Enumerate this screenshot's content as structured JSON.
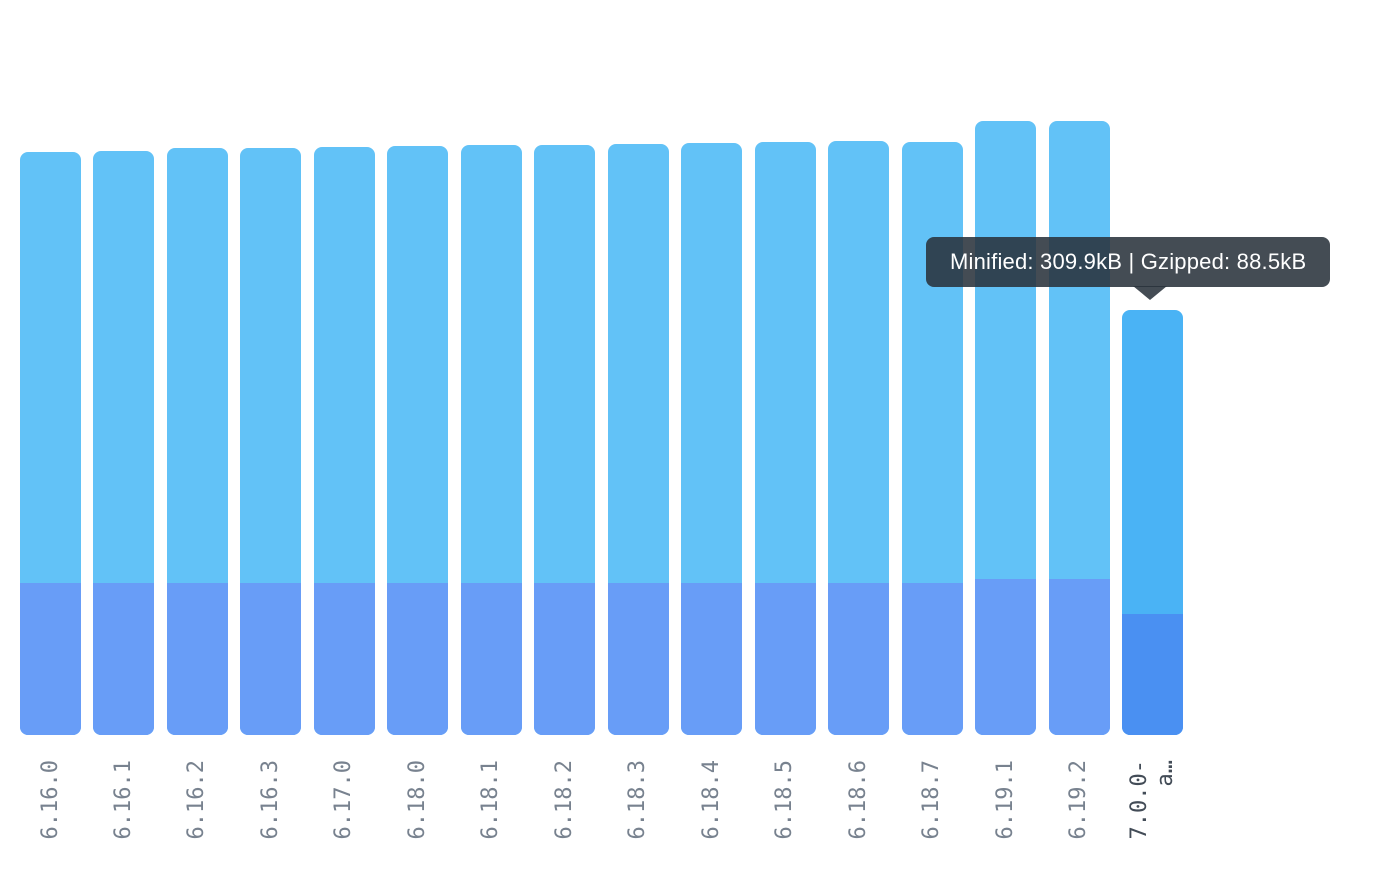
{
  "page": {
    "background": "#FFFFFF"
  },
  "colors": {
    "minified_bar": "#62C2F7",
    "gzipped_bar": "#689DF7",
    "minified_bar_highlight": "#4AB3F5",
    "gzipped_bar_highlight": "#4A90F2",
    "axis_label": "#78828F",
    "axis_label_highlight": "#434C57",
    "tooltip_bg": "rgba(40,49,59,0.87)",
    "tooltip_text": "#FFFFFF"
  },
  "tooltip": {
    "text": "Minified: 309.9kB | Gzipped: 88.5kB",
    "minified_label": "Minified",
    "minified_value": "309.9kB",
    "gzipped_label": "Gzipped",
    "gzipped_value": "88.5kB"
  },
  "chart_data": {
    "type": "bar",
    "title": "",
    "xlabel": "",
    "ylabel": "",
    "unit": "kB",
    "grid": false,
    "legend": false,
    "note": "overlaid stacked bars: full bar height = Minified size, darker bottom overlay = Gzipped size; last bar is hovered showing tooltip",
    "ylim": [
      0,
      536
    ],
    "categories": [
      "6.16.0",
      "6.16.1",
      "6.16.2",
      "6.16.3",
      "6.17.0",
      "6.18.0",
      "6.18.1",
      "6.18.2",
      "6.18.3",
      "6.18.4",
      "6.18.5",
      "6.18.6",
      "6.18.7",
      "6.19.1",
      "6.19.2",
      "7.0.0-a…"
    ],
    "x_label_lines": [
      [
        "6.16.0"
      ],
      [
        "6.16.1"
      ],
      [
        "6.16.2"
      ],
      [
        "6.16.3"
      ],
      [
        "6.17.0"
      ],
      [
        "6.18.0"
      ],
      [
        "6.18.1"
      ],
      [
        "6.18.2"
      ],
      [
        "6.18.3"
      ],
      [
        "6.18.4"
      ],
      [
        "6.18.5"
      ],
      [
        "6.18.6"
      ],
      [
        "6.18.7"
      ],
      [
        "6.19.1"
      ],
      [
        "6.19.2"
      ],
      [
        "7.0.0-",
        "a…"
      ]
    ],
    "series": [
      {
        "name": "Minified",
        "values": [
          425.1,
          425.8,
          428.0,
          428.0,
          428.7,
          429.4,
          430.2,
          430.2,
          430.9,
          431.6,
          432.4,
          433.1,
          432.4,
          447.7,
          447.7,
          309.9
        ]
      },
      {
        "name": "Gzipped",
        "values": [
          110.8,
          110.8,
          110.8,
          110.8,
          110.8,
          110.8,
          110.8,
          110.8,
          110.8,
          110.8,
          110.8,
          110.8,
          110.8,
          113.8,
          113.8,
          88.5
        ]
      }
    ],
    "highlighted_index": 15,
    "highlighted_category": "7.0.0-a…"
  }
}
